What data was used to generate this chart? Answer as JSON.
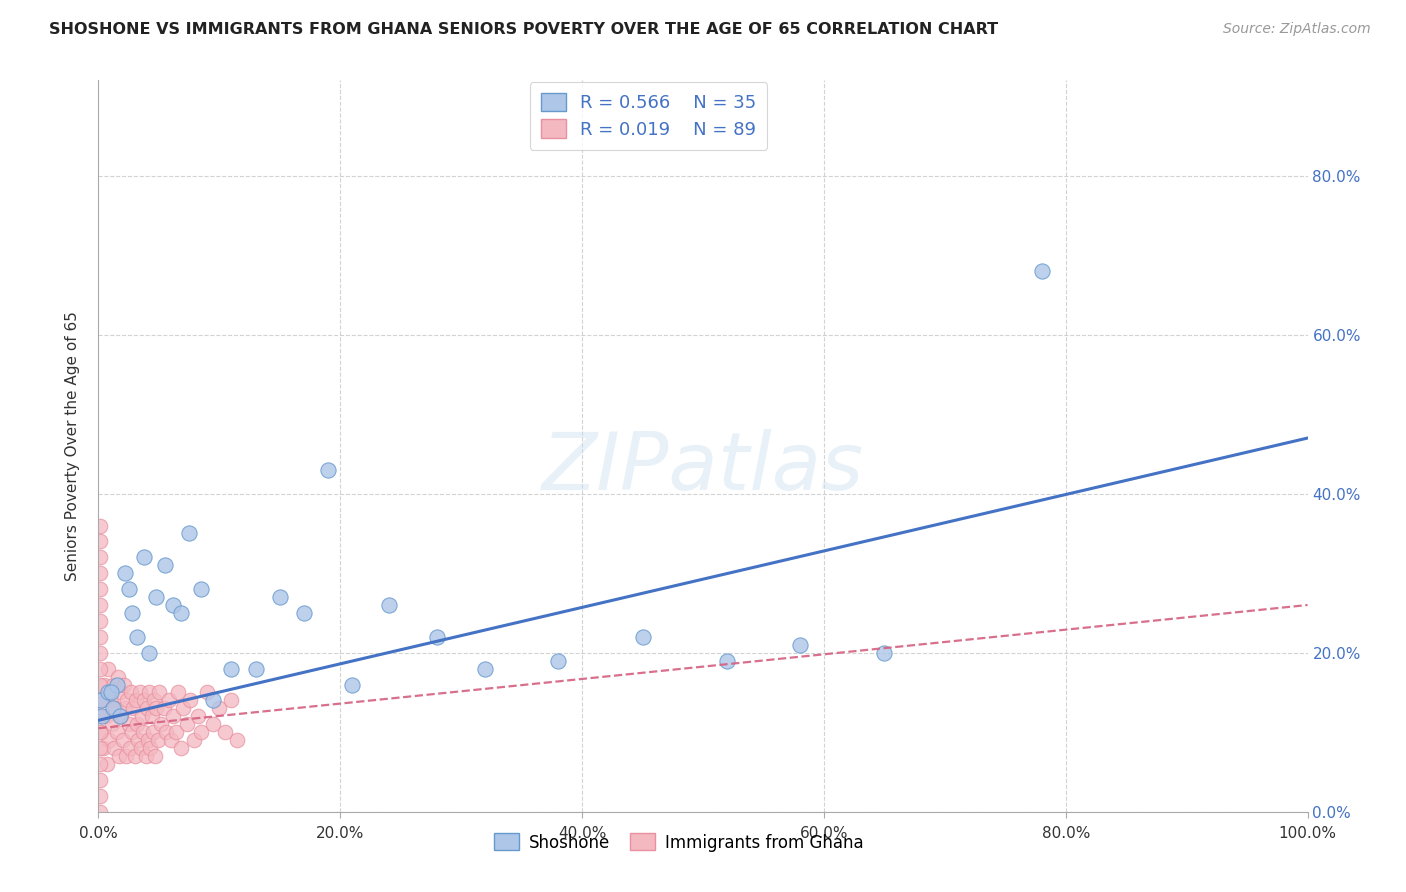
{
  "title": "SHOSHONE VS IMMIGRANTS FROM GHANA SENIORS POVERTY OVER THE AGE OF 65 CORRELATION CHART",
  "source": "Source: ZipAtlas.com",
  "ylabel": "Seniors Poverty Over the Age of 65",
  "xlim": [
    0,
    1.0
  ],
  "ylim": [
    0,
    0.92
  ],
  "ytick_vals": [
    0.0,
    0.2,
    0.4,
    0.6,
    0.8
  ],
  "xtick_vals": [
    0.0,
    0.2,
    0.4,
    0.6,
    0.8,
    1.0
  ],
  "grid_color": "#c8c8c8",
  "background_color": "#ffffff",
  "shoshone_color": "#aec6e8",
  "shoshone_edge_color": "#6699cc",
  "ghana_color": "#f4b8c1",
  "ghana_edge_color": "#e890a0",
  "shoshone_line_color": "#4472c4",
  "ghana_line_color": "#e8708080",
  "tick_label_color": "#4472c4",
  "shoshone_R": "0.566",
  "shoshone_N": "35",
  "ghana_R": "0.019",
  "ghana_N": "89",
  "shoshone_x": [
    0.002,
    0.003,
    0.008,
    0.012,
    0.015,
    0.018,
    0.022,
    0.025,
    0.028,
    0.032,
    0.038,
    0.042,
    0.048,
    0.055,
    0.062,
    0.068,
    0.075,
    0.085,
    0.095,
    0.11,
    0.13,
    0.15,
    0.17,
    0.19,
    0.21,
    0.24,
    0.28,
    0.32,
    0.38,
    0.45,
    0.52,
    0.58,
    0.65,
    0.78,
    0.01
  ],
  "shoshone_y": [
    0.14,
    0.12,
    0.15,
    0.13,
    0.16,
    0.12,
    0.3,
    0.28,
    0.25,
    0.22,
    0.32,
    0.2,
    0.27,
    0.31,
    0.26,
    0.25,
    0.35,
    0.28,
    0.14,
    0.18,
    0.18,
    0.27,
    0.25,
    0.43,
    0.16,
    0.26,
    0.22,
    0.18,
    0.19,
    0.22,
    0.19,
    0.21,
    0.2,
    0.68,
    0.15
  ],
  "ghana_x": [
    0.002,
    0.003,
    0.004,
    0.005,
    0.006,
    0.007,
    0.008,
    0.009,
    0.01,
    0.011,
    0.012,
    0.013,
    0.014,
    0.015,
    0.016,
    0.017,
    0.018,
    0.019,
    0.02,
    0.021,
    0.022,
    0.023,
    0.024,
    0.025,
    0.026,
    0.027,
    0.028,
    0.029,
    0.03,
    0.031,
    0.032,
    0.033,
    0.034,
    0.035,
    0.036,
    0.037,
    0.038,
    0.039,
    0.04,
    0.041,
    0.042,
    0.043,
    0.044,
    0.045,
    0.046,
    0.047,
    0.048,
    0.049,
    0.05,
    0.052,
    0.054,
    0.056,
    0.058,
    0.06,
    0.062,
    0.064,
    0.066,
    0.068,
    0.07,
    0.073,
    0.076,
    0.079,
    0.082,
    0.085,
    0.09,
    0.095,
    0.1,
    0.105,
    0.11,
    0.115,
    0.001,
    0.001,
    0.001,
    0.001,
    0.001,
    0.001,
    0.001,
    0.001,
    0.001,
    0.001,
    0.001,
    0.001,
    0.001,
    0.001,
    0.001,
    0.001,
    0.001,
    0.001,
    0.001
  ],
  "ghana_y": [
    0.1,
    0.14,
    0.08,
    0.16,
    0.12,
    0.06,
    0.18,
    0.09,
    0.14,
    0.11,
    0.16,
    0.08,
    0.13,
    0.1,
    0.17,
    0.07,
    0.15,
    0.12,
    0.09,
    0.16,
    0.13,
    0.07,
    0.14,
    0.11,
    0.08,
    0.15,
    0.1,
    0.13,
    0.07,
    0.14,
    0.11,
    0.09,
    0.15,
    0.08,
    0.12,
    0.1,
    0.14,
    0.07,
    0.13,
    0.09,
    0.15,
    0.08,
    0.12,
    0.1,
    0.14,
    0.07,
    0.13,
    0.09,
    0.15,
    0.11,
    0.13,
    0.1,
    0.14,
    0.09,
    0.12,
    0.1,
    0.15,
    0.08,
    0.13,
    0.11,
    0.14,
    0.09,
    0.12,
    0.1,
    0.15,
    0.11,
    0.13,
    0.1,
    0.14,
    0.09,
    0.0,
    0.02,
    0.04,
    0.06,
    0.08,
    0.1,
    0.12,
    0.14,
    0.16,
    0.18,
    0.2,
    0.22,
    0.24,
    0.26,
    0.28,
    0.3,
    0.32,
    0.34,
    0.36
  ],
  "shoshone_trend": [
    0.12,
    0.46
  ],
  "ghana_trend": [
    0.1,
    0.26
  ]
}
